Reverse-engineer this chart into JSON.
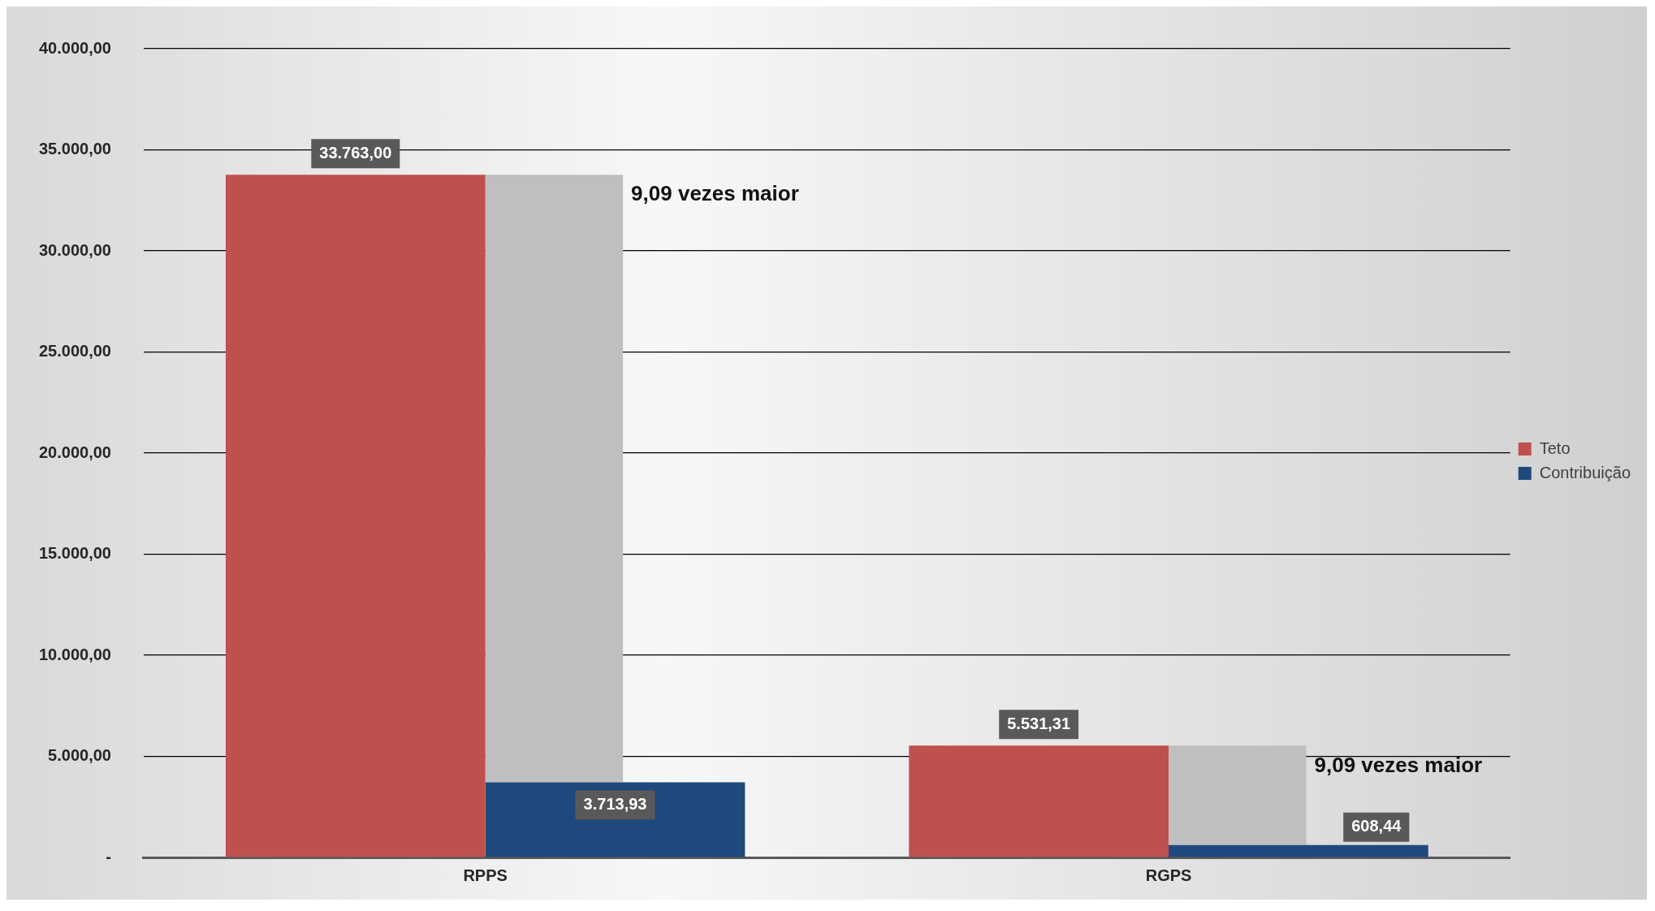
{
  "chart_data": {
    "type": "bar",
    "categories": [
      "RPPS",
      "RGPS"
    ],
    "series": [
      {
        "name": "Teto",
        "color": "#c0504d",
        "values": [
          33763.0,
          5531.31
        ],
        "value_labels": [
          "33.763,00",
          "5.531,31"
        ]
      },
      {
        "name": "Contribuição",
        "color": "#1f497d",
        "values": [
          3713.93,
          608.44
        ],
        "value_labels": [
          "3.713,93",
          "608,44"
        ]
      },
      {
        "color": "#bfbfbf",
        "values": [
          30050,
          4920
        ],
        "base": [
          3714,
          608
        ]
      }
    ],
    "ylim": [
      0,
      40000
    ],
    "yticks": [
      {
        "value": 0,
        "label": "-"
      },
      {
        "value": 5000,
        "label": "5.000,00"
      },
      {
        "value": 10000,
        "label": "10.000,00"
      },
      {
        "value": 15000,
        "label": "15.000,00"
      },
      {
        "value": 20000,
        "label": "20.000,00"
      },
      {
        "value": 25000,
        "label": "25.000,00"
      },
      {
        "value": 30000,
        "label": "30.000,00"
      },
      {
        "value": 35000,
        "label": "35.000,00"
      },
      {
        "value": 40000,
        "label": "40.000,00"
      }
    ],
    "grid": "y",
    "legend": "right",
    "annotations": [
      "9,09 vezes maior",
      "9,09 vezes maior"
    ]
  }
}
